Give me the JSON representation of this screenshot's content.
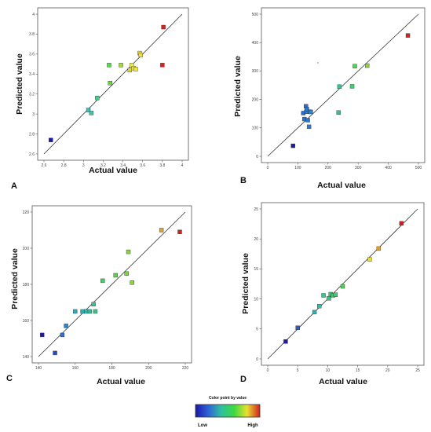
{
  "chart_data": [
    {
      "type": "scatter",
      "panel_label": "A",
      "xlabel": "Actual value",
      "ylabel": "Predicted value",
      "xlim": [
        2.6,
        4.0
      ],
      "ylim": [
        2.6,
        4.0
      ],
      "xticks": [
        "2.6",
        "2.8",
        "3",
        "3.2",
        "3.4",
        "3.6",
        "3.8",
        "4"
      ],
      "yticks": [
        "2.6",
        "2.8",
        "3",
        "3.2",
        "3.4",
        "3.6",
        "3.8",
        "4"
      ],
      "grid": false,
      "reference_line": "y = x",
      "points": [
        {
          "x": 2.67,
          "y": 2.74,
          "color": "#1a1aa8"
        },
        {
          "x": 3.05,
          "y": 3.04,
          "color": "#3fbfb4"
        },
        {
          "x": 3.08,
          "y": 3.01,
          "color": "#3fc7a0"
        },
        {
          "x": 3.14,
          "y": 3.16,
          "color": "#3fd088"
        },
        {
          "x": 3.27,
          "y": 3.31,
          "color": "#66d640"
        },
        {
          "x": 3.26,
          "y": 3.49,
          "color": "#5ad84a"
        },
        {
          "x": 3.38,
          "y": 3.49,
          "color": "#9ddc3a"
        },
        {
          "x": 3.47,
          "y": 3.44,
          "color": "#d8dc3a"
        },
        {
          "x": 3.49,
          "y": 3.49,
          "color": "#f2ee3a"
        },
        {
          "x": 3.51,
          "y": 3.46,
          "color": "#f2ee3a"
        },
        {
          "x": 3.53,
          "y": 3.45,
          "color": "#f0e83c"
        },
        {
          "x": 3.57,
          "y": 3.61,
          "color": "#f2d83a"
        },
        {
          "x": 3.58,
          "y": 3.59,
          "color": "#f2e03a"
        },
        {
          "x": 3.8,
          "y": 3.49,
          "color": "#d42020"
        },
        {
          "x": 3.81,
          "y": 3.87,
          "color": "#d42020"
        }
      ]
    },
    {
      "type": "scatter",
      "panel_label": "B",
      "xlabel": "Actual value",
      "ylabel": "Predicted value",
      "xlim": [
        0,
        500
      ],
      "ylim": [
        0,
        500
      ],
      "xticks": [
        "0",
        "100",
        "200",
        "300",
        "400",
        "500"
      ],
      "yticks": [
        "0",
        "100",
        "200",
        "300",
        "400",
        "500"
      ],
      "grid": false,
      "reference_line": "y = x",
      "points": [
        {
          "x": 84,
          "y": 37,
          "color": "#1a1aa8"
        },
        {
          "x": 118,
          "y": 152,
          "color": "#2a6ed0"
        },
        {
          "x": 122,
          "y": 131,
          "color": "#2a6ed0"
        },
        {
          "x": 127,
          "y": 176,
          "color": "#2a6ed0"
        },
        {
          "x": 128,
          "y": 157,
          "color": "#2a74d2"
        },
        {
          "x": 130,
          "y": 166,
          "color": "#2a74d2"
        },
        {
          "x": 133,
          "y": 127,
          "color": "#2a78d0"
        },
        {
          "x": 137,
          "y": 104,
          "color": "#2a7cd0"
        },
        {
          "x": 140,
          "y": 157,
          "color": "#2a84cc"
        },
        {
          "x": 143,
          "y": 156,
          "color": "#2a88ca"
        },
        {
          "x": 235,
          "y": 154,
          "color": "#30c0a0"
        },
        {
          "x": 238,
          "y": 245,
          "color": "#36c490"
        },
        {
          "x": 280,
          "y": 246,
          "color": "#40d070"
        },
        {
          "x": 289,
          "y": 317,
          "color": "#52d458"
        },
        {
          "x": 330,
          "y": 319,
          "color": "#86d63c"
        },
        {
          "x": 465,
          "y": 425,
          "color": "#d42020"
        }
      ]
    },
    {
      "type": "scatter",
      "panel_label": "C",
      "xlabel": "Actual value",
      "ylabel": "Predicted value",
      "xlim": [
        140,
        220
      ],
      "ylim": [
        140,
        220
      ],
      "xticks": [
        "140",
        "160",
        "180",
        "200",
        "220"
      ],
      "yticks": [
        "140",
        "160",
        "180",
        "200",
        "220"
      ],
      "grid": false,
      "reference_line": "y = x",
      "points": [
        {
          "x": 142,
          "y": 152,
          "color": "#1a1aa8"
        },
        {
          "x": 149,
          "y": 142,
          "color": "#2a4cc0"
        },
        {
          "x": 153,
          "y": 152,
          "color": "#2a6ed0"
        },
        {
          "x": 155,
          "y": 157,
          "color": "#2a84cc"
        },
        {
          "x": 160,
          "y": 165,
          "color": "#30a8c0"
        },
        {
          "x": 164,
          "y": 165,
          "color": "#30b0b4"
        },
        {
          "x": 166,
          "y": 165,
          "color": "#34b8a8"
        },
        {
          "x": 168,
          "y": 165,
          "color": "#36bc9c"
        },
        {
          "x": 170,
          "y": 169,
          "color": "#3cc48c"
        },
        {
          "x": 171,
          "y": 165,
          "color": "#3ec484"
        },
        {
          "x": 175,
          "y": 182,
          "color": "#46cc6a"
        },
        {
          "x": 182,
          "y": 185,
          "color": "#5ad04c"
        },
        {
          "x": 188,
          "y": 186,
          "color": "#78d43e"
        },
        {
          "x": 189,
          "y": 198,
          "color": "#86d63c"
        },
        {
          "x": 191,
          "y": 181,
          "color": "#8ad83a"
        },
        {
          "x": 207,
          "y": 210,
          "color": "#e0a030"
        },
        {
          "x": 217,
          "y": 209,
          "color": "#d42020"
        }
      ]
    },
    {
      "type": "scatter",
      "panel_label": "D",
      "xlabel": "Actual value",
      "ylabel": "Predicted value",
      "xlim": [
        0,
        25
      ],
      "ylim": [
        0,
        25
      ],
      "xticks": [
        "0",
        "5",
        "10",
        "15",
        "20",
        "25"
      ],
      "yticks": [
        "0",
        "5",
        "10",
        "15",
        "20",
        "25"
      ],
      "grid": false,
      "reference_line": "y = x",
      "points": [
        {
          "x": 3.0,
          "y": 2.9,
          "color": "#1a1aa8"
        },
        {
          "x": 5.0,
          "y": 5.2,
          "color": "#2a5ac8"
        },
        {
          "x": 7.8,
          "y": 7.8,
          "color": "#30b0b4"
        },
        {
          "x": 8.6,
          "y": 8.8,
          "color": "#34bca0"
        },
        {
          "x": 9.3,
          "y": 10.6,
          "color": "#3cc48c"
        },
        {
          "x": 10.2,
          "y": 10.1,
          "color": "#3ec480"
        },
        {
          "x": 10.5,
          "y": 10.8,
          "color": "#40c878"
        },
        {
          "x": 10.9,
          "y": 10.6,
          "color": "#42c872"
        },
        {
          "x": 11.3,
          "y": 10.7,
          "color": "#44ca6c"
        },
        {
          "x": 12.5,
          "y": 12.1,
          "color": "#50ce58"
        },
        {
          "x": 17.0,
          "y": 16.6,
          "color": "#e8e030"
        },
        {
          "x": 18.5,
          "y": 18.4,
          "color": "#e0a030"
        },
        {
          "x": 22.3,
          "y": 22.6,
          "color": "#d42020"
        }
      ]
    }
  ],
  "legend": {
    "title": "Color point by value",
    "low_label": "Low",
    "high_label": "High",
    "gradient_colors": [
      "#1a1aa8",
      "#2f62d8",
      "#30c0a0",
      "#3cd840",
      "#e8e030",
      "#d42020"
    ]
  }
}
